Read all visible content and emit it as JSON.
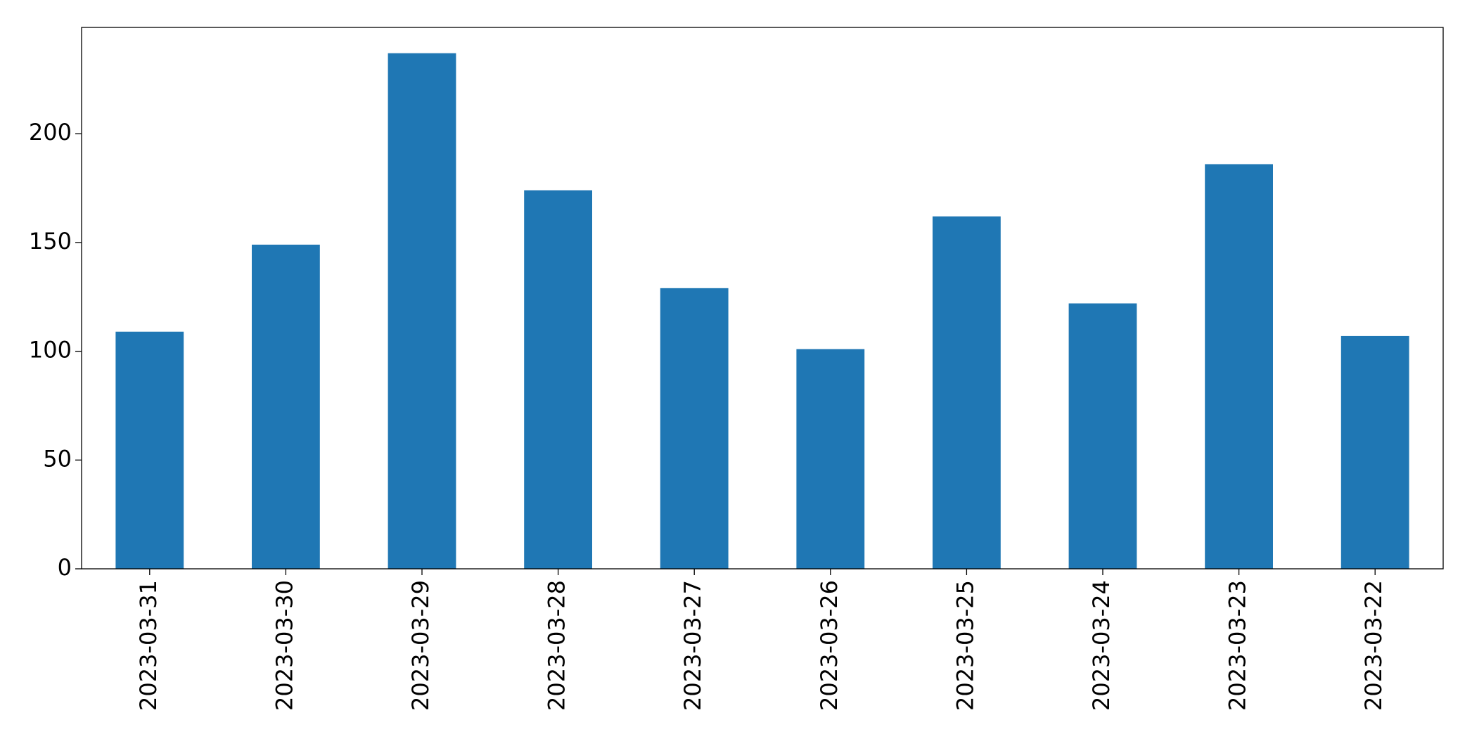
{
  "chart_data": {
    "type": "bar",
    "categories": [
      "2023-03-31",
      "2023-03-30",
      "2023-03-29",
      "2023-03-28",
      "2023-03-27",
      "2023-03-26",
      "2023-03-25",
      "2023-03-24",
      "2023-03-23",
      "2023-03-22"
    ],
    "values": [
      109,
      149,
      237,
      174,
      129,
      101,
      162,
      122,
      186,
      107
    ],
    "color": "#1f77b4",
    "ylim": [
      0,
      248.85
    ],
    "yticks": [
      0,
      50,
      100,
      150,
      200
    ],
    "grid": false
  }
}
